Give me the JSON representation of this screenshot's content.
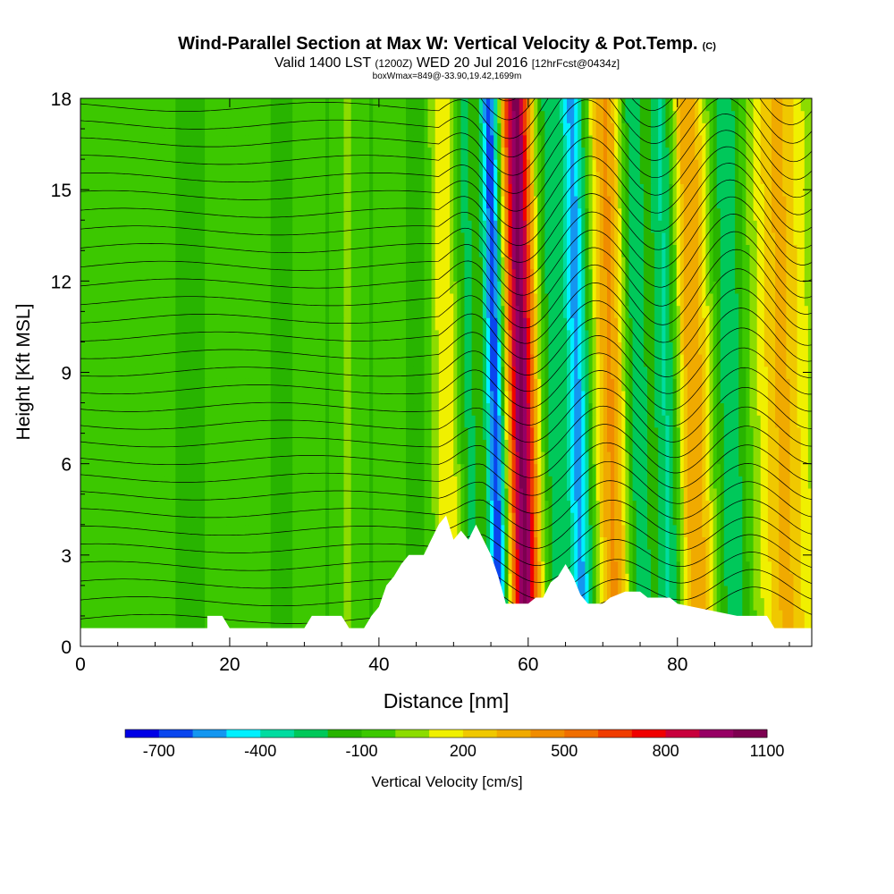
{
  "header": {
    "title": "Wind-Parallel Section at Max W: Vertical Velocity & Pot.Temp.",
    "title_mark": "(C)",
    "subtitle_main": "Valid 1400 LST",
    "subtitle_utc": "(1200Z)",
    "subtitle_date": "WED 20 Jul 2016",
    "subtitle_fcst": "[12hrFcst@0434z]",
    "info_line": "boxWmax=849@-33.90,19.42,1699m"
  },
  "chart_data": {
    "type": "heatmap",
    "title": "Wind-Parallel Section at Max W: Vertical Velocity & Pot.Temp.",
    "xlabel": "Distance [nm]",
    "ylabel": "Height [Kft MSL]",
    "xlim": [
      0,
      98
    ],
    "ylim": [
      0,
      18
    ],
    "x_ticks": [
      0,
      20,
      40,
      60,
      80
    ],
    "y_ticks": [
      0,
      3,
      6,
      9,
      12,
      15,
      18
    ],
    "colorbar": {
      "label": "Vertical Velocity [cm/s]",
      "tick_labels": [
        "-700",
        "-400",
        "-100",
        "200",
        "500",
        "800",
        "1100"
      ],
      "tick_values": [
        -700,
        -400,
        -100,
        200,
        500,
        800,
        1100
      ],
      "levels": [
        -800,
        -700,
        -600,
        -500,
        -400,
        -300,
        -200,
        -100,
        0,
        100,
        200,
        300,
        400,
        500,
        600,
        700,
        800,
        900,
        1000,
        1100
      ],
      "colors": [
        "#0000e6",
        "#0a46ee",
        "#1496f0",
        "#00f0ff",
        "#00dca0",
        "#00c85a",
        "#28b400",
        "#3cc800",
        "#8cdc00",
        "#f0f000",
        "#f0c800",
        "#f0aa00",
        "#f08c00",
        "#f06e00",
        "#f03c00",
        "#f00000",
        "#c8003c",
        "#960064",
        "#7d0050"
      ]
    },
    "w_features": [
      {
        "x": 3,
        "w": 15,
        "amp": -100
      },
      {
        "x": 15,
        "w": 2.0,
        "amp": -160
      },
      {
        "x": 27,
        "w": 2.5,
        "amp": -150
      },
      {
        "x": 33,
        "w": 1.5,
        "amp": -120
      },
      {
        "x": 39,
        "w": 2.0,
        "amp": -120
      },
      {
        "x": 45,
        "w": 2.0,
        "amp": -170
      },
      {
        "x": 49,
        "w": 1.5,
        "amp": 180
      },
      {
        "x": 52,
        "w": 1.5,
        "amp": -250
      },
      {
        "x": 55.5,
        "w": 1.3,
        "amp": -700
      },
      {
        "x": 59,
        "w": 1.9,
        "amp": 1000
      },
      {
        "x": 63,
        "w": 1.6,
        "amp": -250
      },
      {
        "x": 66.5,
        "w": 1.7,
        "amp": -550
      },
      {
        "x": 71,
        "w": 2.0,
        "amp": 400
      },
      {
        "x": 74.5,
        "w": 1.8,
        "amp": -300
      },
      {
        "x": 78.5,
        "w": 1.8,
        "amp": -350
      },
      {
        "x": 82,
        "w": 2.2,
        "amp": 380
      },
      {
        "x": 87,
        "w": 2.2,
        "amp": -300
      },
      {
        "x": 94,
        "w": 3.0,
        "amp": 300
      }
    ],
    "terrain_kft": [
      [
        0,
        0.6
      ],
      [
        17,
        0.6
      ],
      [
        17,
        1.0
      ],
      [
        19,
        1.0
      ],
      [
        20,
        0.6
      ],
      [
        30,
        0.6
      ],
      [
        31,
        1.0
      ],
      [
        35,
        1.0
      ],
      [
        36,
        0.6
      ],
      [
        38,
        0.6
      ],
      [
        39,
        1.0
      ],
      [
        40,
        1.3
      ],
      [
        41,
        2.0
      ],
      [
        42,
        2.3
      ],
      [
        43,
        2.7
      ],
      [
        44,
        3.0
      ],
      [
        46,
        3.0
      ],
      [
        47,
        3.5
      ],
      [
        48,
        4.0
      ],
      [
        49,
        4.3
      ],
      [
        50,
        3.5
      ],
      [
        51,
        3.8
      ],
      [
        52,
        3.5
      ],
      [
        53,
        4.0
      ],
      [
        54,
        3.5
      ],
      [
        55,
        3.0
      ],
      [
        56,
        2.3
      ],
      [
        57,
        1.4
      ],
      [
        60,
        1.4
      ],
      [
        61,
        1.6
      ],
      [
        62,
        1.6
      ],
      [
        63,
        2.1
      ],
      [
        64,
        2.3
      ],
      [
        65,
        2.7
      ],
      [
        66,
        2.3
      ],
      [
        67,
        1.7
      ],
      [
        68,
        1.4
      ],
      [
        70,
        1.4
      ],
      [
        71,
        1.6
      ],
      [
        73,
        1.8
      ],
      [
        75,
        1.8
      ],
      [
        76,
        1.6
      ],
      [
        79,
        1.6
      ],
      [
        80,
        1.4
      ],
      [
        88,
        1.0
      ],
      [
        92,
        1.0
      ],
      [
        93,
        0.6
      ],
      [
        98,
        0.6
      ]
    ]
  }
}
